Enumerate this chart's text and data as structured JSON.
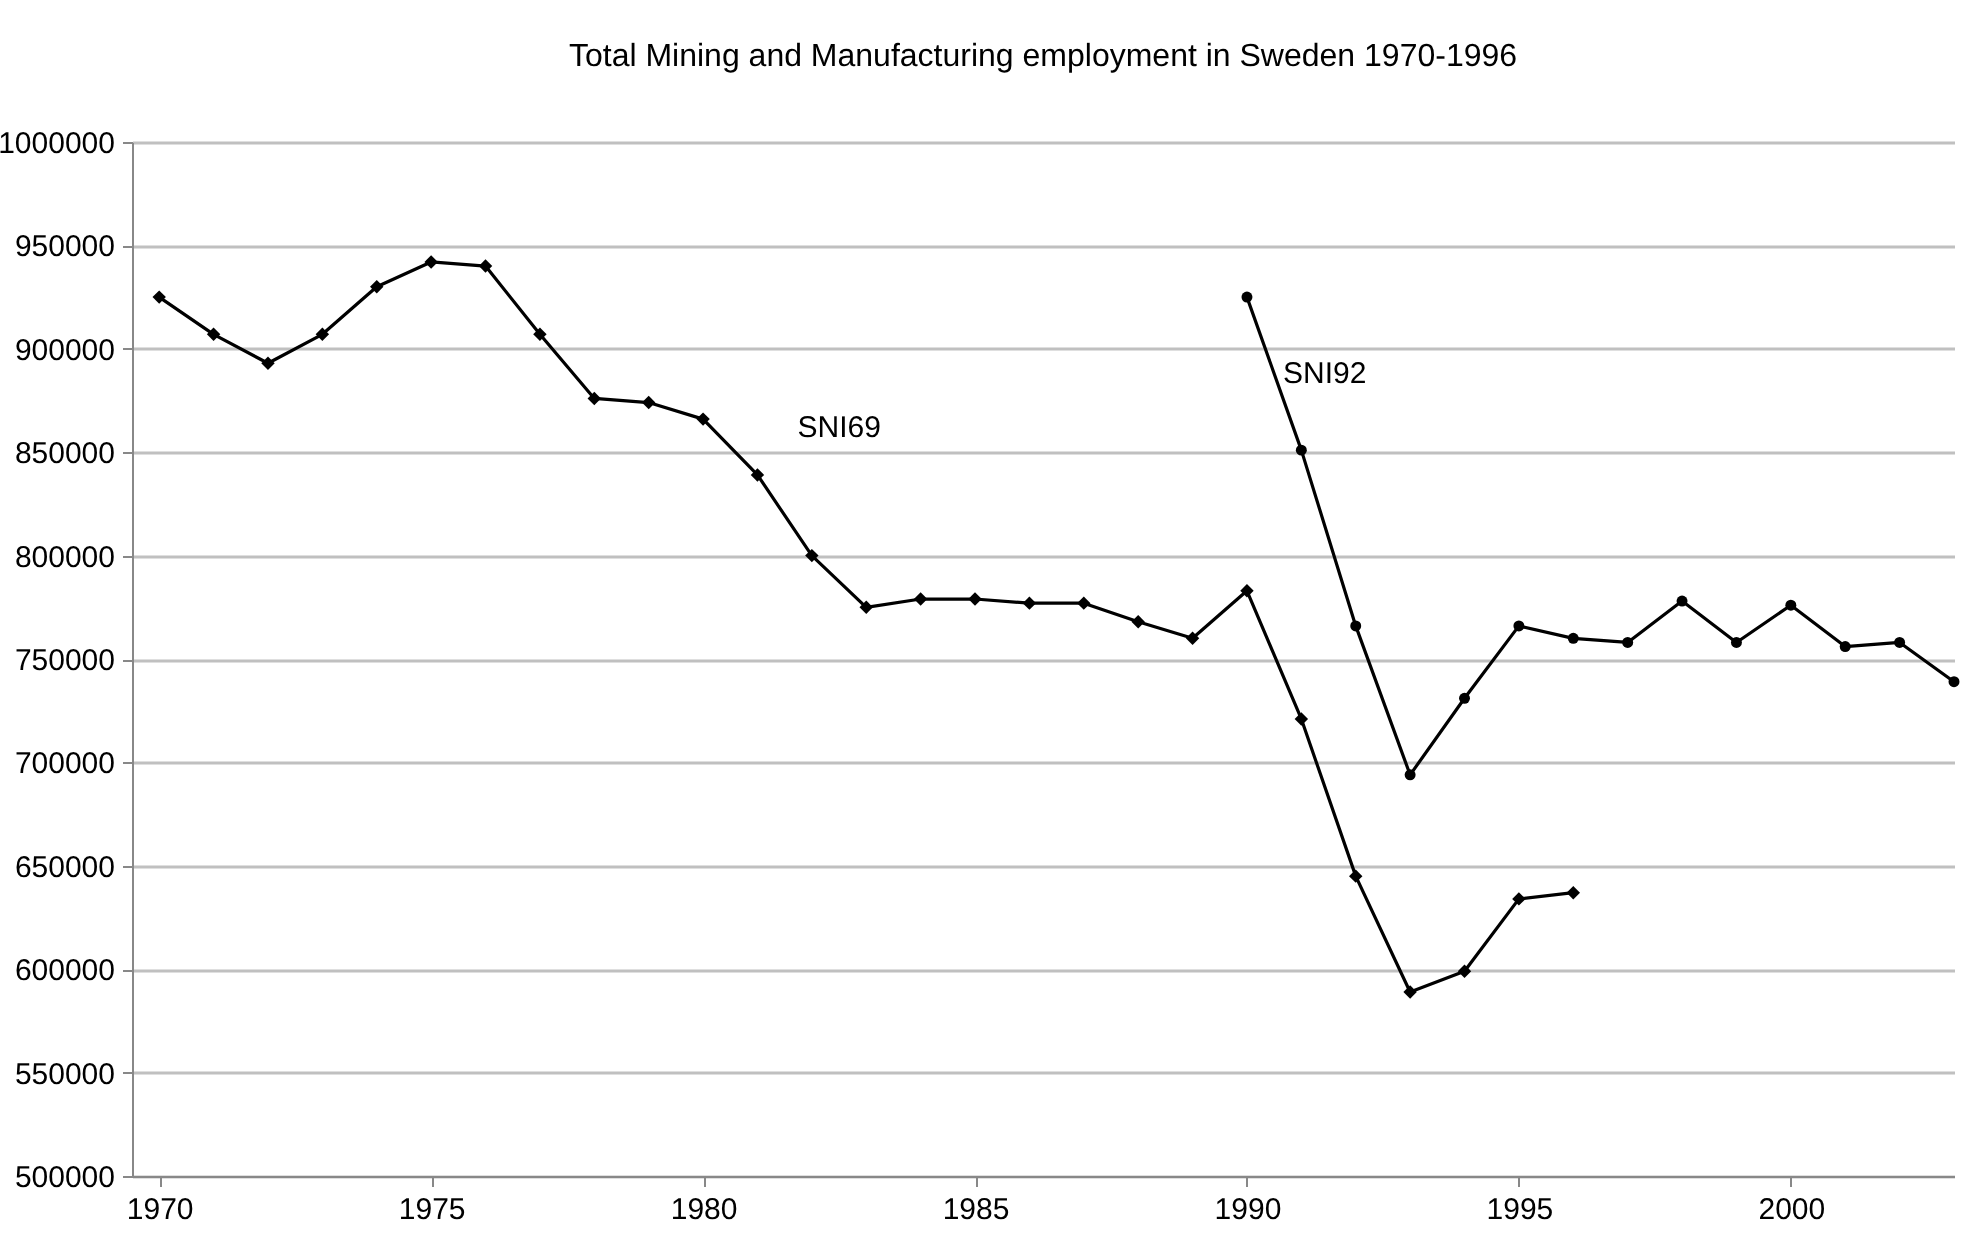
{
  "chart_data": {
    "type": "line",
    "title": "Total Mining and Manufacturing employment in Sweden 1970-1996",
    "xlim": [
      1969.5,
      2003
    ],
    "xticks": [
      1970,
      1975,
      1980,
      1985,
      1990,
      1995,
      2000
    ],
    "ylim": [
      500000,
      1000000
    ],
    "yticks": [
      500000,
      550000,
      600000,
      650000,
      700000,
      750000,
      800000,
      850000,
      900000,
      950000,
      1000000
    ],
    "grid": "y",
    "series": [
      {
        "name": "SNI69",
        "color": "#000000",
        "marker": "diamond",
        "x": [
          1970,
          1971,
          1972,
          1973,
          1974,
          1975,
          1976,
          1977,
          1978,
          1979,
          1980,
          1981,
          1982,
          1983,
          1984,
          1985,
          1986,
          1987,
          1988,
          1989,
          1990,
          1991,
          1992,
          1993,
          1994,
          1995,
          1996
        ],
        "values": [
          925000,
          907000,
          893000,
          907000,
          930000,
          942000,
          940000,
          907000,
          876000,
          874000,
          866000,
          839000,
          800000,
          775000,
          779000,
          779000,
          777000,
          777000,
          768000,
          760000,
          783000,
          721000,
          645000,
          589000,
          599000,
          634000,
          637000
        ]
      },
      {
        "name": "SNI92",
        "color": "#000000",
        "marker": "circle",
        "x": [
          1990,
          1991,
          1992,
          1993,
          1994,
          1995,
          1996,
          1997,
          1998,
          1999,
          2000,
          2001,
          2002,
          2003
        ],
        "values": [
          925000,
          851000,
          766000,
          694000,
          731000,
          766000,
          760000,
          758000,
          778000,
          758000,
          776000,
          756000,
          758000,
          739000
        ]
      }
    ]
  }
}
